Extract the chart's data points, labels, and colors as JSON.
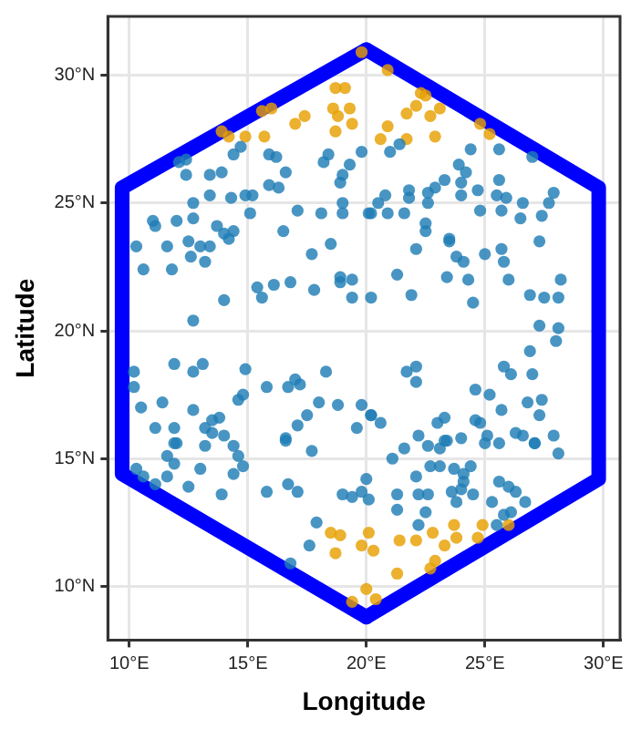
{
  "chart_data": {
    "type": "scatter",
    "xlabel": "Longitude",
    "ylabel": "Latitude",
    "xlim": [
      9.1,
      30.7
    ],
    "ylim": [
      7.9,
      32.3
    ],
    "xticks": [
      {
        "value": 10,
        "label": "10°E"
      },
      {
        "value": 15,
        "label": "15°E"
      },
      {
        "value": 20,
        "label": "20°E"
      },
      {
        "value": 25,
        "label": "25°E"
      },
      {
        "value": 30,
        "label": "30°E"
      }
    ],
    "yticks": [
      {
        "value": 10,
        "label": "10°N"
      },
      {
        "value": 15,
        "label": "15°N"
      },
      {
        "value": 20,
        "label": "20°N"
      },
      {
        "value": 25,
        "label": "25°N"
      },
      {
        "value": 30,
        "label": "30°N"
      }
    ],
    "grid": true,
    "legend": false,
    "marker": "circle",
    "series": [
      {
        "type": "line",
        "color": "#0000ff",
        "marker": "none",
        "line_style": "solid",
        "x": [
          20,
          29.8,
          29.8,
          20
        ],
        "values": [
          31,
          25.6,
          14.2,
          8.8
        ]
      },
      {
        "type": "line",
        "color": "#0000ff",
        "marker": "none",
        "line_style": "solid",
        "x": [
          20,
          9.7,
          9.7,
          20
        ],
        "values": [
          8.8,
          14.4,
          25.6,
          31
        ]
      },
      {
        "type": "scatter",
        "color": "#1f7db5",
        "x": [
          12.1,
          12.4,
          12.4,
          13.4,
          13.9,
          14.4,
          14.7,
          15.9,
          16.2,
          16.6,
          15.9,
          16.3,
          15.2,
          14.9,
          15.1,
          14.3,
          13.4,
          12.7,
          12.7,
          12.0,
          11.0,
          11.1,
          13.7,
          14.4,
          14.0,
          16.5,
          17.1,
          18.1,
          19.0,
          18.4,
          18.2,
          19.3,
          19.0,
          18.9,
          19.0,
          20.2,
          21.0,
          21.4,
          19.8,
          24.4,
          25.6,
          27.0,
          23.9,
          24.2,
          23.3,
          24.0,
          25.6,
          24.7,
          24.0,
          22.9,
          22.6,
          21.8,
          20.8,
          21.8,
          25.5,
          25.9,
          26.6,
          27.9,
          27.7,
          25.7,
          24.8,
          22.6,
          20.5,
          20.1,
          20.9,
          21.6,
          22.5,
          22.5,
          26.5,
          27.4,
          23.5,
          10.3,
          10.6,
          11.6,
          12.5,
          13.0,
          13.4,
          12.6,
          13.2,
          11.8,
          14.2,
          15.4,
          15.6,
          14.0,
          12.7,
          16.8,
          16.1,
          17.8,
          17.7,
          18.5,
          18.9,
          19.4,
          18.9,
          19.4,
          11.9,
          12.7,
          13.1,
          14.9,
          15.8,
          16.7,
          17.0,
          17.2,
          18.3,
          14.6,
          14.8,
          11.4,
          12.7,
          13.8,
          13.5,
          11.1,
          11.9,
          13.2,
          13.5,
          14.0,
          11.9,
          16.6,
          17.1,
          17.5,
          18.0,
          18.8,
          19.6,
          20.2,
          10.2,
          10.2,
          10.5,
          22.1,
          23.5,
          23.8,
          24.1,
          25.0,
          25.7,
          25.8,
          27.3,
          21.3,
          21.9,
          23.4,
          24.3,
          26.0,
          28.2,
          26.9,
          27.5,
          28.1,
          24.5,
          20.2,
          27.3,
          28.1,
          28.0,
          26.9,
          25.8,
          26.1,
          27.0,
          22.1,
          22.1,
          21.7,
          24.6,
          25.2,
          19.8,
          20.2,
          20.6,
          23.3,
          23.0,
          24.6,
          24.8,
          25.7,
          26.8,
          27.4,
          27.3,
          25.1,
          26.3,
          26.6,
          27.1,
          27.9,
          24.0,
          23.3,
          22.2,
          22.6,
          12.0,
          13.2,
          14.4,
          14.6,
          11.6,
          11.9,
          14.8,
          14.4,
          11.6,
          13.0,
          10.3,
          10.6,
          11.1,
          12.5,
          13.9,
          16.6,
          17.7,
          15.8,
          16.7,
          17.1,
          19.0,
          19.4,
          19.8,
          20.0,
          20.1,
          17.9,
          17.6,
          16.8,
          21.1,
          21.6,
          23.1,
          23.4,
          25.0,
          25.6,
          27.1,
          28.1,
          22.1,
          22.7,
          23.1,
          23.7,
          24.1,
          24.4,
          24.1,
          24.0,
          23.6,
          24.5,
          23.8,
          25.6,
          26.0,
          26.3,
          26.7,
          25.3,
          21.3,
          22.2,
          22.6,
          21.3,
          22.5,
          22.2,
          26.1,
          25.8,
          25.5
        ],
        "values": [
          26.6,
          26.7,
          26.1,
          26.1,
          26.2,
          26.9,
          27.2,
          26.9,
          26.8,
          26.2,
          25.7,
          25.6,
          25.3,
          25.3,
          24.6,
          25.2,
          25.3,
          25.0,
          24.4,
          24.3,
          24.3,
          24.1,
          24.1,
          23.9,
          23.8,
          23.9,
          24.7,
          24.6,
          24.6,
          26.9,
          26.6,
          26.5,
          26.1,
          25.8,
          25.0,
          24.6,
          27.0,
          27.3,
          27.0,
          27.1,
          27.1,
          26.8,
          26.5,
          26.2,
          25.9,
          25.8,
          25.9,
          25.5,
          25.3,
          25.6,
          25.4,
          25.5,
          25.3,
          25.2,
          25.3,
          25.2,
          25.0,
          25.4,
          25.0,
          24.7,
          24.7,
          25.0,
          25.0,
          24.6,
          24.6,
          24.6,
          24.2,
          23.9,
          24.4,
          24.5,
          23.6,
          23.3,
          22.4,
          23.3,
          23.5,
          23.3,
          23.3,
          22.9,
          22.7,
          22.4,
          23.6,
          21.7,
          21.3,
          21.2,
          20.4,
          21.9,
          21.8,
          21.6,
          23.0,
          23.4,
          22.1,
          22.0,
          21.9,
          21.3,
          18.7,
          18.4,
          18.7,
          18.5,
          17.8,
          17.8,
          18.1,
          17.9,
          18.4,
          17.3,
          17.5,
          17.2,
          16.9,
          16.6,
          16.5,
          16.2,
          16.2,
          16.2,
          16.0,
          15.9,
          15.6,
          15.8,
          16.3,
          16.7,
          17.2,
          17.1,
          16.2,
          16.7,
          18.4,
          17.8,
          17.0,
          23.2,
          23.5,
          22.9,
          22.7,
          23.0,
          23.2,
          22.7,
          23.5,
          22.2,
          21.4,
          22.1,
          22.0,
          22.0,
          22.0,
          21.4,
          21.3,
          21.3,
          21.1,
          21.3,
          20.2,
          20.1,
          19.6,
          19.2,
          18.6,
          18.3,
          18.3,
          18.6,
          18.0,
          18.4,
          17.7,
          17.5,
          17.1,
          16.7,
          16.4,
          16.6,
          16.4,
          16.5,
          16.4,
          16.9,
          17.2,
          17.3,
          16.7,
          15.9,
          16.0,
          15.9,
          15.6,
          15.9,
          15.8,
          15.7,
          15.9,
          15.5,
          15.6,
          15.5,
          15.5,
          15.1,
          15.1,
          14.8,
          14.7,
          14.4,
          14.3,
          14.6,
          14.6,
          14.3,
          14.0,
          13.9,
          13.6,
          15.7,
          15.3,
          13.7,
          14.0,
          13.7,
          13.6,
          13.5,
          13.7,
          14.2,
          13.4,
          12.5,
          11.6,
          10.9,
          15.0,
          15.4,
          15.4,
          15.7,
          15.6,
          15.6,
          15.6,
          15.2,
          14.3,
          14.7,
          14.7,
          14.6,
          14.4,
          14.7,
          14.1,
          13.8,
          13.7,
          13.6,
          13.3,
          14.1,
          13.9,
          13.7,
          13.3,
          13.3,
          13.6,
          13.6,
          13.6,
          13.0,
          12.9,
          12.4,
          12.9,
          12.8,
          12.4
        ]
      },
      {
        "type": "scatter",
        "color": "#e69f00",
        "x": [
          19.8,
          18.7,
          19.1,
          18.6,
          19.3,
          18.8,
          19.4,
          18.7,
          16.0,
          15.6,
          17.4,
          17.0,
          13.9,
          14.2,
          14.9,
          15.7,
          20.9,
          22.3,
          22.5,
          22.1,
          21.7,
          22.7,
          23.1,
          20.9,
          20.6,
          21.7,
          22.9,
          24.8,
          25.2,
          18.5,
          18.9,
          18.7,
          20.1,
          19.8,
          20.0,
          19.4,
          20.3,
          21.4,
          22.1,
          22.8,
          23.7,
          23.8,
          23.3,
          24.9,
          24.7,
          26.0,
          22.9,
          22.7,
          21.3,
          20.4
        ],
        "values": [
          30.9,
          29.5,
          29.5,
          28.7,
          28.7,
          28.4,
          28.1,
          27.8,
          28.7,
          28.6,
          28.4,
          28.1,
          27.8,
          27.6,
          27.6,
          27.6,
          30.2,
          29.3,
          29.2,
          28.8,
          28.5,
          28.4,
          28.7,
          28.0,
          27.5,
          27.5,
          27.6,
          28.1,
          27.7,
          12.1,
          12.0,
          11.3,
          12.1,
          11.6,
          9.9,
          9.4,
          11.4,
          11.8,
          11.8,
          12.1,
          12.4,
          11.9,
          11.6,
          12.4,
          11.9,
          12.4,
          11.0,
          10.7,
          10.5,
          9.5
        ]
      }
    ]
  }
}
